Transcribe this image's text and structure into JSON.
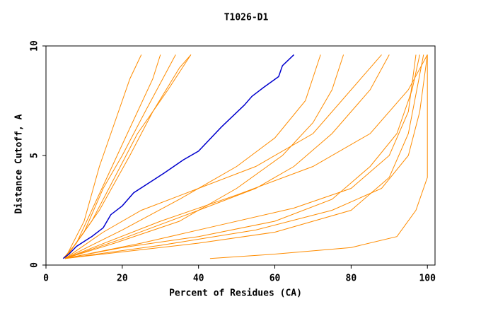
{
  "chart_data": {
    "type": "line",
    "title": "T1026-D1",
    "x_label": "Percent of Residues (CA)",
    "y_label": "Distance Cutoff, A",
    "xlim": [
      0,
      102
    ],
    "ylim": [
      0,
      10
    ],
    "xticks": [
      0,
      20,
      40,
      60,
      80,
      100
    ],
    "yticks": [
      0,
      5,
      10
    ],
    "series": [
      {
        "color": "#ff8c00",
        "x": [
          4.5,
          8,
          12,
          16,
          20,
          24,
          28,
          30
        ],
        "values": [
          0.3,
          1,
          2.5,
          4,
          5.5,
          7,
          8.5,
          9.6
        ]
      },
      {
        "color": "#ff8c00",
        "x": [
          5,
          10,
          15,
          20,
          26,
          34
        ],
        "values": [
          0.3,
          1.5,
          3.5,
          5,
          7,
          9.6
        ]
      },
      {
        "color": "#ff8c00",
        "x": [
          5,
          12,
          18,
          24,
          32,
          38
        ],
        "values": [
          0.3,
          2,
          4,
          6,
          8,
          9.6
        ]
      },
      {
        "color": "#ff8c00",
        "x": [
          5,
          15,
          25,
          40,
          55,
          70,
          80,
          88
        ],
        "values": [
          0.3,
          1.5,
          2.5,
          3.5,
          4.5,
          6,
          8,
          9.6
        ]
      },
      {
        "color": "#ff8c00",
        "x": [
          5,
          20,
          40,
          60,
          75,
          85,
          92,
          96,
          98
        ],
        "values": [
          0.3,
          0.8,
          1.3,
          2,
          3,
          4.5,
          6,
          8,
          9.6
        ]
      },
      {
        "color": "#ff8c00",
        "x": [
          5,
          20,
          40,
          60,
          80,
          90,
          95,
          99
        ],
        "values": [
          0.3,
          0.6,
          1,
          1.5,
          2.5,
          4,
          6,
          9.6
        ]
      },
      {
        "color": "#ff8c00",
        "x": [
          43,
          60,
          80,
          92,
          97,
          100,
          100
        ],
        "values": [
          0.3,
          0.5,
          0.8,
          1.3,
          2.5,
          4,
          9.6
        ]
      },
      {
        "color": "#ff8c00",
        "x": [
          5,
          20,
          40,
          55,
          65,
          75,
          85,
          90
        ],
        "values": [
          0.3,
          1.2,
          2.5,
          3.5,
          4.5,
          6,
          8,
          9.6
        ]
      },
      {
        "color": "#ff8c00",
        "x": [
          5,
          18,
          35,
          50,
          62,
          70,
          75,
          78
        ],
        "values": [
          0.3,
          1,
          2,
          3.5,
          5,
          6.5,
          8,
          9.6
        ]
      },
      {
        "color": "#ff8c00",
        "x": [
          5,
          14,
          22,
          28,
          35,
          38
        ],
        "values": [
          0.3,
          2.5,
          5,
          7,
          9,
          9.6
        ]
      },
      {
        "color": "#ff8c00",
        "x": [
          5,
          25,
          45,
          65,
          80,
          90,
          95,
          97
        ],
        "values": [
          0.3,
          1,
          1.8,
          2.6,
          3.5,
          5,
          7,
          9.6
        ]
      },
      {
        "color": "#ff8c00",
        "x": [
          5,
          30,
          55,
          75,
          88,
          95,
          98,
          100
        ],
        "values": [
          0.3,
          0.9,
          1.6,
          2.5,
          3.5,
          5,
          7,
          9.6
        ]
      },
      {
        "color": "#ff8c00",
        "x": [
          5,
          20,
          35,
          50,
          60,
          68,
          72
        ],
        "values": [
          0.3,
          1.6,
          3,
          4.5,
          5.8,
          7.5,
          9.6
        ]
      },
      {
        "color": "#ff8c00",
        "x": [
          5,
          10,
          14,
          18,
          22,
          25
        ],
        "values": [
          0.3,
          2,
          4.5,
          6.5,
          8.5,
          9.6
        ]
      },
      {
        "color": "#ff8c00",
        "x": [
          5,
          30,
          50,
          70,
          85,
          95,
          100
        ],
        "values": [
          0.3,
          2,
          3.2,
          4.5,
          6,
          8,
          9.6
        ]
      },
      {
        "color": "#0000cd",
        "x": [
          4.5,
          6,
          8,
          12,
          15,
          17,
          20,
          23,
          31,
          36,
          40,
          46,
          52,
          54,
          57,
          61,
          62,
          65
        ],
        "values": [
          0.3,
          0.5,
          0.85,
          1.3,
          1.7,
          2.3,
          2.7,
          3.3,
          4.2,
          4.8,
          5.2,
          6.3,
          7.3,
          7.7,
          8.1,
          8.6,
          9.1,
          9.6
        ]
      }
    ]
  }
}
